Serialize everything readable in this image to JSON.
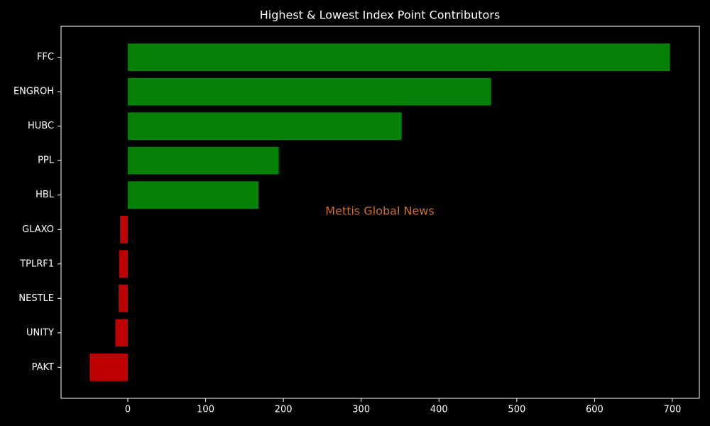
{
  "chart_data": {
    "type": "barh",
    "title": "Highest & Lowest Index Point Contributors",
    "watermark": "Mettis Global News",
    "categories": [
      "FFC",
      "ENGROH",
      "HUBC",
      "PPL",
      "HBL",
      "GLAXO",
      "TPLRF1",
      "NESTLE",
      "UNITY",
      "PAKT"
    ],
    "values": [
      697,
      467,
      352,
      194,
      168,
      -10,
      -11,
      -12,
      -16,
      -49
    ],
    "colors": [
      "#058105",
      "#058105",
      "#058105",
      "#058105",
      "#058105",
      "#c00000",
      "#c00000",
      "#c00000",
      "#c00000",
      "#c00000"
    ],
    "xlim": [
      -85.8,
      734.7
    ],
    "xticks": [
      0,
      100,
      200,
      300,
      400,
      500,
      600,
      700
    ]
  }
}
